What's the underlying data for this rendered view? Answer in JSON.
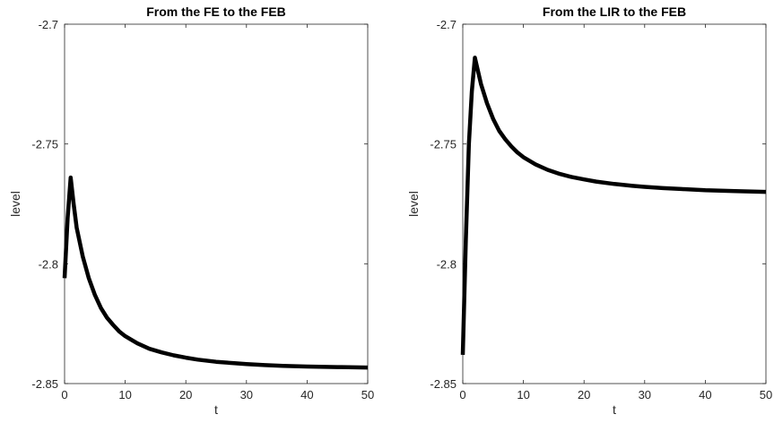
{
  "chart_data": [
    {
      "type": "line",
      "title": "From the FE to the FEB",
      "xlabel": "t",
      "ylabel": "level",
      "xlim": [
        0,
        50
      ],
      "ylim": [
        -2.85,
        -2.7
      ],
      "xticks": [
        "0",
        "10",
        "20",
        "30",
        "40",
        "50"
      ],
      "yticks": [
        "-2.85",
        "-2.8",
        "-2.75",
        "-2.7"
      ],
      "grid": false,
      "color": "#000000",
      "x": [
        0,
        0.5,
        1,
        1.5,
        2,
        3,
        4,
        5,
        6,
        7,
        8,
        9,
        10,
        12,
        14,
        16,
        18,
        20,
        22,
        25,
        28,
        30,
        33,
        36,
        40,
        45,
        50
      ],
      "y": [
        -2.806,
        -2.781,
        -2.764,
        -2.775,
        -2.785,
        -2.797,
        -2.806,
        -2.813,
        -2.8185,
        -2.8225,
        -2.8255,
        -2.8282,
        -2.8302,
        -2.8332,
        -2.8355,
        -2.837,
        -2.8382,
        -2.8392,
        -2.84,
        -2.8409,
        -2.8415,
        -2.8419,
        -2.8423,
        -2.8426,
        -2.8429,
        -2.8431,
        -2.8433
      ]
    },
    {
      "type": "line",
      "title": "From the LIR to the FEB",
      "xlabel": "t",
      "ylabel": "level",
      "xlim": [
        0,
        50
      ],
      "ylim": [
        -2.85,
        -2.7
      ],
      "xticks": [
        "0",
        "10",
        "20",
        "30",
        "40",
        "50"
      ],
      "yticks": [
        "-2.85",
        "-2.8",
        "-2.75",
        "-2.7"
      ],
      "grid": false,
      "color": "#000000",
      "x": [
        0,
        0.5,
        1,
        1.5,
        2,
        3,
        4,
        5,
        6,
        7,
        8,
        9,
        10,
        12,
        14,
        16,
        18,
        20,
        22,
        25,
        28,
        30,
        33,
        36,
        40,
        45,
        50
      ],
      "y": [
        -2.838,
        -2.79,
        -2.75,
        -2.728,
        -2.714,
        -2.725,
        -2.733,
        -2.7395,
        -2.7445,
        -2.748,
        -2.751,
        -2.7535,
        -2.7555,
        -2.7585,
        -2.7608,
        -2.7625,
        -2.7638,
        -2.7648,
        -2.7657,
        -2.7667,
        -2.7675,
        -2.7679,
        -2.7684,
        -2.7688,
        -2.7693,
        -2.7697,
        -2.77
      ]
    }
  ]
}
